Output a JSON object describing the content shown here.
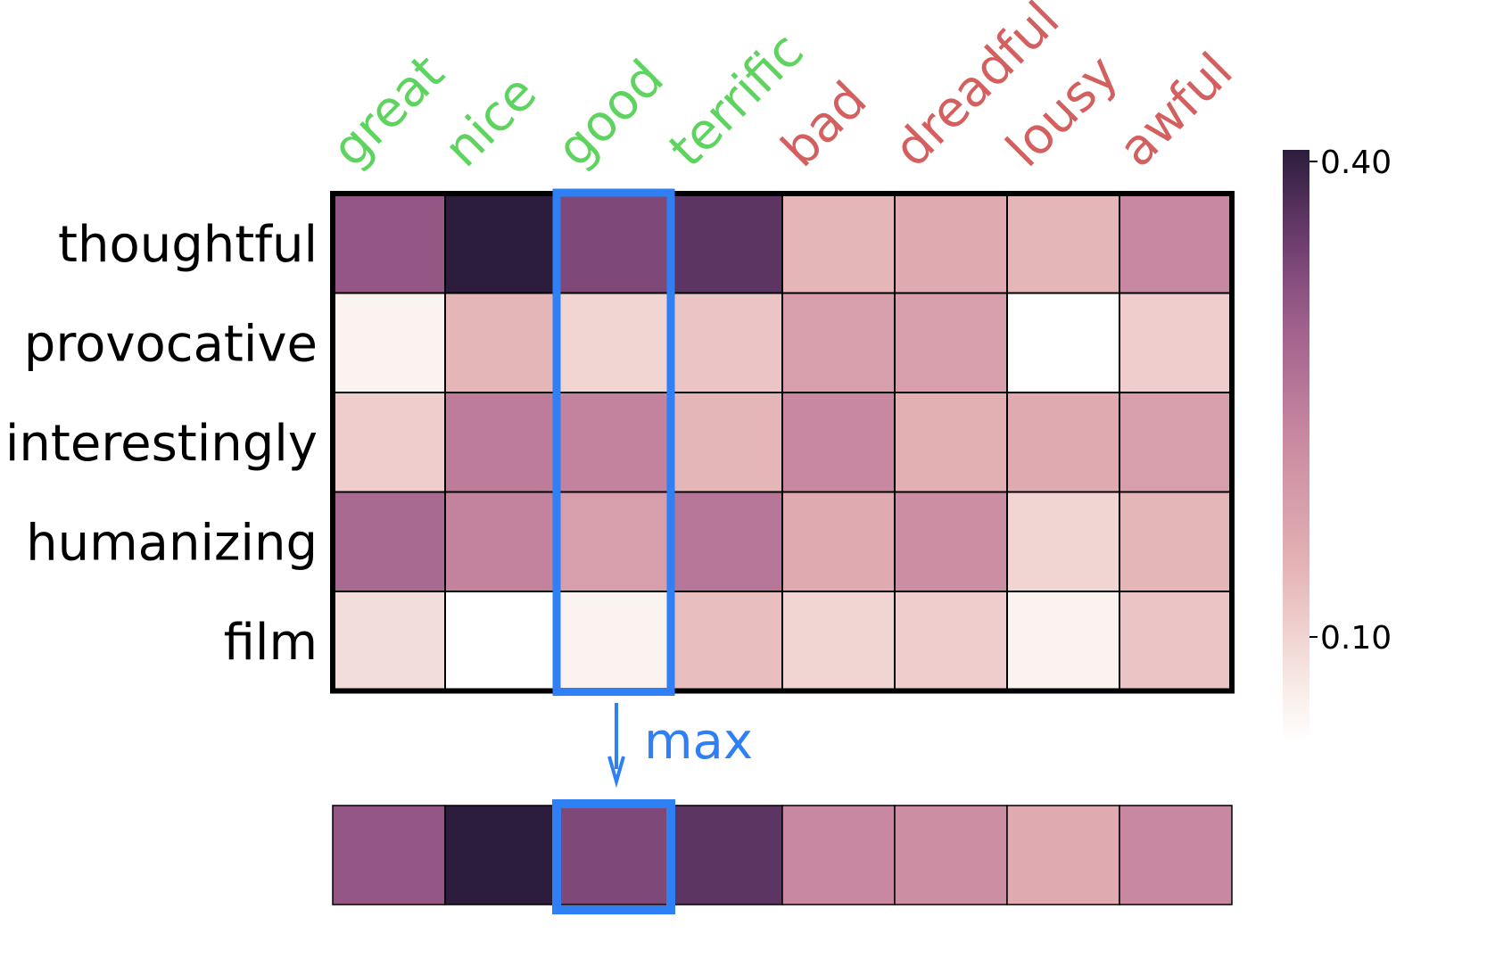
{
  "chart_data": {
    "type": "heatmap",
    "title": "",
    "xlabel": "",
    "ylabel": "",
    "columns": [
      "great",
      "nice",
      "good",
      "terrific",
      "bad",
      "dreadful",
      "lousy",
      "awful"
    ],
    "column_colors": [
      "#5fd35f",
      "#5fd35f",
      "#5fd35f",
      "#5fd35f",
      "#d45f5f",
      "#d45f5f",
      "#d45f5f",
      "#d45f5f"
    ],
    "rows": [
      "thoughtful",
      "provocative",
      "interestingly",
      "humanizing",
      "film"
    ],
    "values": [
      [
        0.31,
        0.4,
        0.33,
        0.36,
        0.15,
        0.17,
        0.15,
        0.23
      ],
      [
        0.07,
        0.15,
        0.11,
        0.13,
        0.19,
        0.19,
        0.05,
        0.12
      ],
      [
        0.12,
        0.25,
        0.24,
        0.15,
        0.23,
        0.16,
        0.17,
        0.19
      ],
      [
        0.28,
        0.24,
        0.19,
        0.26,
        0.17,
        0.22,
        0.11,
        0.15
      ],
      [
        0.1,
        0.05,
        0.07,
        0.14,
        0.11,
        0.12,
        0.07,
        0.13
      ]
    ],
    "highlight_column": "good",
    "aggregation_label": "max",
    "max_row": [
      0.31,
      0.4,
      0.33,
      0.36,
      0.23,
      0.22,
      0.17,
      0.23
    ],
    "colorbar": {
      "ticks": [
        0.4,
        0.1
      ],
      "tick_labels": [
        "0.40",
        "0.10"
      ],
      "range": [
        0.05,
        0.4
      ]
    },
    "colors": {
      "highlight": "#2f7ff5",
      "grid": "#000000"
    }
  }
}
